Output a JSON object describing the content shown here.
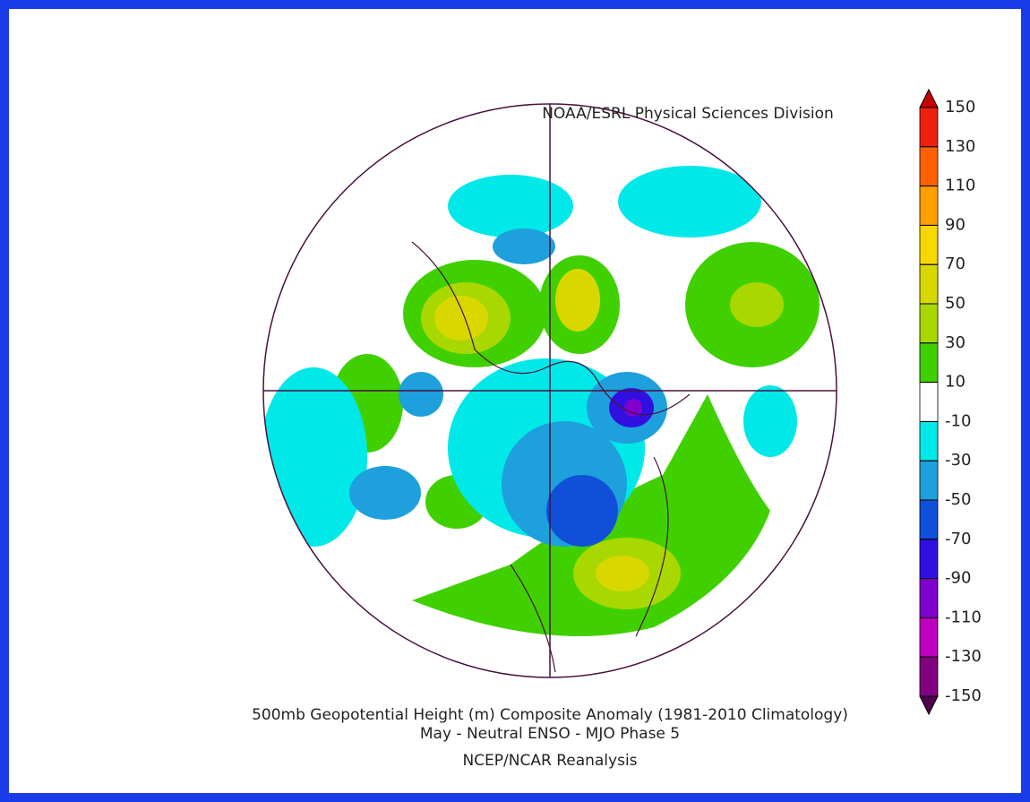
{
  "header": {
    "credit": "NOAA/ESRL Physical Sciences Division"
  },
  "colorbar": {
    "levels": [
      150,
      130,
      110,
      90,
      70,
      50,
      30,
      10,
      -10,
      -30,
      -50,
      -70,
      -90,
      -110,
      -130,
      -150
    ],
    "colors": [
      "#c80000",
      "#ee2010",
      "#ff6000",
      "#ffa000",
      "#f8d800",
      "#d8d800",
      "#a8d800",
      "#40d000",
      "#ffffff",
      "#00e8e8",
      "#1ea0dc",
      "#1050d8",
      "#3010e0",
      "#8000d0",
      "#c000c0",
      "#800080",
      "#500050"
    ]
  },
  "footer": {
    "title": "500mb Geopotential Height (m) Composite Anomaly (1981-2010 Climatology)",
    "subtitle": "May - Neutral ENSO - MJO Phase 5",
    "source": "NCEP/NCAR Reanalysis"
  }
}
